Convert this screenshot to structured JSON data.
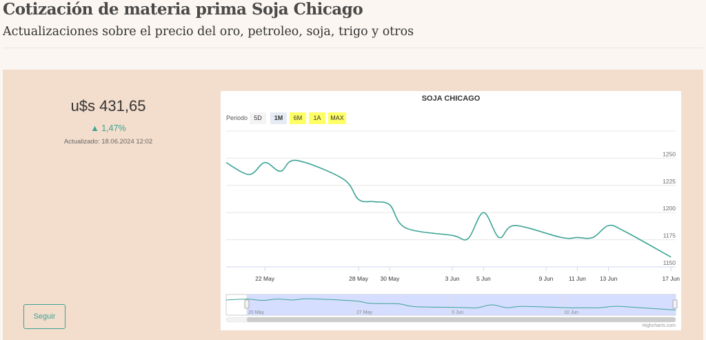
{
  "header": {
    "title": "Cotización de materia prima Soja Chicago",
    "subtitle": "Actualizaciones sobre el precio del oro, petroleo, soja, trigo y otros"
  },
  "quote": {
    "price": "u$s 431,65",
    "change": "▲ 1,47%",
    "updated": "Actualizado: 18.06.2024 12:02",
    "follow_label": "Seguir"
  },
  "chart": {
    "title": "SOJA CHICAGO",
    "period_label": "Periodo",
    "range_buttons": [
      {
        "label": "5D",
        "color": "#f4f4f4"
      },
      {
        "label": "1M",
        "color": "#e6ebf5",
        "selected": true
      },
      {
        "label": "6M",
        "color": "#ffff66"
      },
      {
        "label": "1A",
        "color": "#ffff66"
      },
      {
        "label": "MAX",
        "color": "#ffff66"
      }
    ],
    "credits": "Highcharts.com",
    "navigator_labels": [
      "20 May",
      "27 May",
      "3 Jun",
      "10 Jun"
    ],
    "line_color": "#3aa394",
    "navigator_fill": "#ccd6ff"
  },
  "chart_data": {
    "type": "line",
    "title": "SOJA CHICAGO",
    "x_tick_labels": [
      "22 May",
      "28 May",
      "30 May",
      "3 Jun",
      "5 Jun",
      "9 Jun",
      "11 Jun",
      "13 Jun",
      "17 Jun"
    ],
    "y_tick_labels": [
      "1150",
      "1175",
      "1200",
      "1225",
      "1250"
    ],
    "ylim": [
      1150,
      1275
    ],
    "grid": true,
    "series": [
      {
        "x": [
          "2024-05-20",
          "2024-05-21",
          "2024-05-22",
          "2024-05-23",
          "2024-05-24",
          "2024-05-27",
          "2024-05-28",
          "2024-05-29",
          "2024-05-30",
          "2024-05-31",
          "2024-06-03",
          "2024-06-04",
          "2024-06-05",
          "2024-06-06",
          "2024-06-07",
          "2024-06-10",
          "2024-06-11",
          "2024-06-12",
          "2024-06-13",
          "2024-06-14",
          "2024-06-17"
        ],
        "values": [
          1246,
          1235,
          1246,
          1238,
          1248,
          1231,
          1212,
          1210,
          1207,
          1186,
          1179,
          1176,
          1200,
          1177,
          1188,
          1177,
          1177,
          1177,
          1188,
          1183,
          1159
        ]
      }
    ]
  }
}
